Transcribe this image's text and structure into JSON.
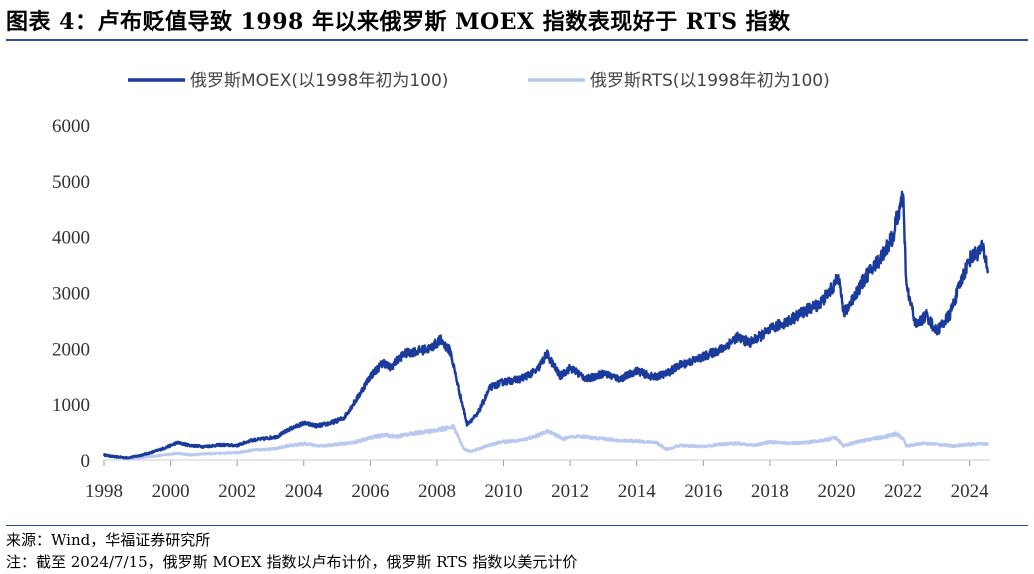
{
  "title": "图表 4：卢布贬值导致 1998 年以来俄罗斯 MOEX 指数表现好于 RTS 指数",
  "source": "来源：Wind，华福证券研究所",
  "note": "注：截至 2024/7/15，俄罗斯 MOEX 指数以卢布计价，俄罗斯 RTS 指数以美元计价",
  "chart_data": {
    "type": "line",
    "title": "",
    "xlabel": "",
    "ylabel": "",
    "xlim": [
      1998,
      2024.55
    ],
    "ylim": [
      0,
      6000
    ],
    "grid": false,
    "legend": "top-center",
    "x_ticks": [
      1998,
      2000,
      2002,
      2004,
      2006,
      2008,
      2010,
      2012,
      2014,
      2016,
      2018,
      2020,
      2022,
      2024
    ],
    "y_ticks": [
      0,
      1000,
      2000,
      3000,
      4000,
      5000,
      6000
    ],
    "series": [
      {
        "name": "俄罗斯MOEX(以1998年初为100)",
        "color": "#1a3a9c",
        "x": [
          1998.0,
          1998.3,
          1998.7,
          1999.0,
          1999.4,
          1999.8,
          2000.2,
          2000.6,
          2001.0,
          2001.5,
          2002.0,
          2002.4,
          2002.8,
          2003.2,
          2003.6,
          2004.0,
          2004.4,
          2004.8,
          2005.2,
          2005.6,
          2006.0,
          2006.4,
          2006.6,
          2007.0,
          2007.4,
          2007.8,
          2008.1,
          2008.4,
          2008.7,
          2008.9,
          2009.2,
          2009.6,
          2010.0,
          2010.5,
          2011.0,
          2011.3,
          2011.7,
          2012.0,
          2012.5,
          2013.0,
          2013.5,
          2014.0,
          2014.5,
          2014.9,
          2015.3,
          2015.8,
          2016.2,
          2016.6,
          2017.0,
          2017.4,
          2017.8,
          2018.2,
          2018.6,
          2019.0,
          2019.5,
          2019.9,
          2020.1,
          2020.2,
          2020.5,
          2020.9,
          2021.3,
          2021.7,
          2021.8,
          2022.0,
          2022.1,
          2022.4,
          2022.7,
          2023.0,
          2023.4,
          2023.8,
          2024.0,
          2024.4,
          2024.55
        ],
        "values": [
          90,
          60,
          40,
          70,
          130,
          210,
          310,
          260,
          240,
          270,
          260,
          350,
          380,
          420,
          560,
          660,
          610,
          660,
          750,
          1100,
          1500,
          1750,
          1650,
          1900,
          1950,
          2000,
          2150,
          1950,
          1150,
          650,
          800,
          1300,
          1400,
          1450,
          1600,
          1900,
          1500,
          1650,
          1450,
          1550,
          1450,
          1600,
          1480,
          1550,
          1700,
          1800,
          1900,
          2000,
          2200,
          2100,
          2250,
          2400,
          2500,
          2650,
          2800,
          3100,
          3300,
          2600,
          2900,
          3300,
          3600,
          4000,
          4300,
          4700,
          3100,
          2400,
          2600,
          2300,
          2600,
          3300,
          3600,
          3800,
          3400
        ]
      },
      {
        "name": "俄罗斯RTS(以1998年初为100)",
        "color": "#b8c8ef",
        "x": [
          1998.0,
          1998.3,
          1998.7,
          1999.0,
          1999.4,
          1999.8,
          2000.2,
          2000.6,
          2001.0,
          2001.5,
          2002.0,
          2002.5,
          2003.0,
          2003.5,
          2004.0,
          2004.5,
          2005.0,
          2005.5,
          2006.0,
          2006.4,
          2006.8,
          2007.2,
          2007.8,
          2008.2,
          2008.5,
          2008.8,
          2009.0,
          2009.5,
          2010.0,
          2010.5,
          2011.0,
          2011.3,
          2011.8,
          2012.2,
          2013.0,
          2013.5,
          2014.0,
          2014.6,
          2014.9,
          2015.3,
          2016.0,
          2016.5,
          2017.0,
          2017.5,
          2018.0,
          2018.5,
          2019.0,
          2019.5,
          2020.0,
          2020.2,
          2020.6,
          2021.0,
          2021.5,
          2021.8,
          2022.0,
          2022.1,
          2022.6,
          2023.0,
          2023.5,
          2024.0,
          2024.55
        ],
        "values": [
          100,
          55,
          30,
          40,
          60,
          90,
          120,
          90,
          110,
          120,
          130,
          180,
          190,
          250,
          290,
          250,
          280,
          310,
          400,
          450,
          420,
          470,
          520,
          560,
          600,
          200,
          150,
          250,
          330,
          350,
          430,
          520,
          380,
          420,
          380,
          350,
          340,
          310,
          190,
          260,
          240,
          280,
          300,
          260,
          320,
          300,
          310,
          340,
          400,
          250,
          320,
          370,
          420,
          470,
          380,
          250,
          300,
          280,
          250,
          280,
          290
        ]
      }
    ]
  }
}
